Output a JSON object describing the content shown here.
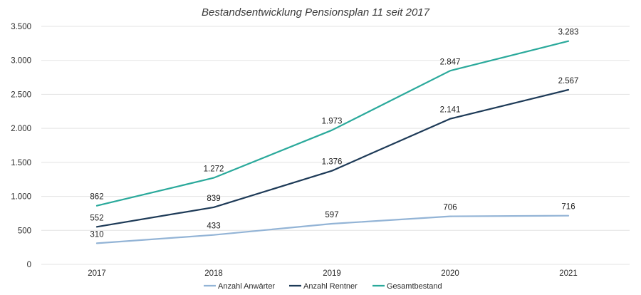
{
  "chart_data": {
    "type": "line",
    "title": "Bestandsentwicklung Pensionsplan 11 seit 2017",
    "xlabel": "",
    "ylabel": "",
    "categories": [
      "2017",
      "2018",
      "2019",
      "2020",
      "2021"
    ],
    "ylim": [
      0,
      3500
    ],
    "yticks": [
      0,
      500,
      1000,
      1500,
      2000,
      2500,
      3000,
      3500
    ],
    "ytick_labels": [
      "0",
      "500",
      "1.000",
      "1.500",
      "2.000",
      "2.500",
      "3.000",
      "3.500"
    ],
    "grid": true,
    "legend_position": "bottom",
    "series": [
      {
        "name": "Anzahl Anwärter",
        "color": "#93b4d6",
        "values": [
          310,
          433,
          597,
          706,
          716
        ],
        "labels": [
          "310",
          "433",
          "597",
          "706",
          "716"
        ]
      },
      {
        "name": "Anzahl Rentner",
        "color": "#1d3a57",
        "values": [
          552,
          839,
          1376,
          2141,
          2567
        ],
        "labels": [
          "552",
          "839",
          "1.376",
          "2.141",
          "2.567"
        ]
      },
      {
        "name": "Gesamtbestand",
        "color": "#2aa99b",
        "values": [
          862,
          1272,
          1973,
          2847,
          3283
        ],
        "labels": [
          "862",
          "1.272",
          "1.973",
          "2.847",
          "3.283"
        ]
      }
    ]
  }
}
